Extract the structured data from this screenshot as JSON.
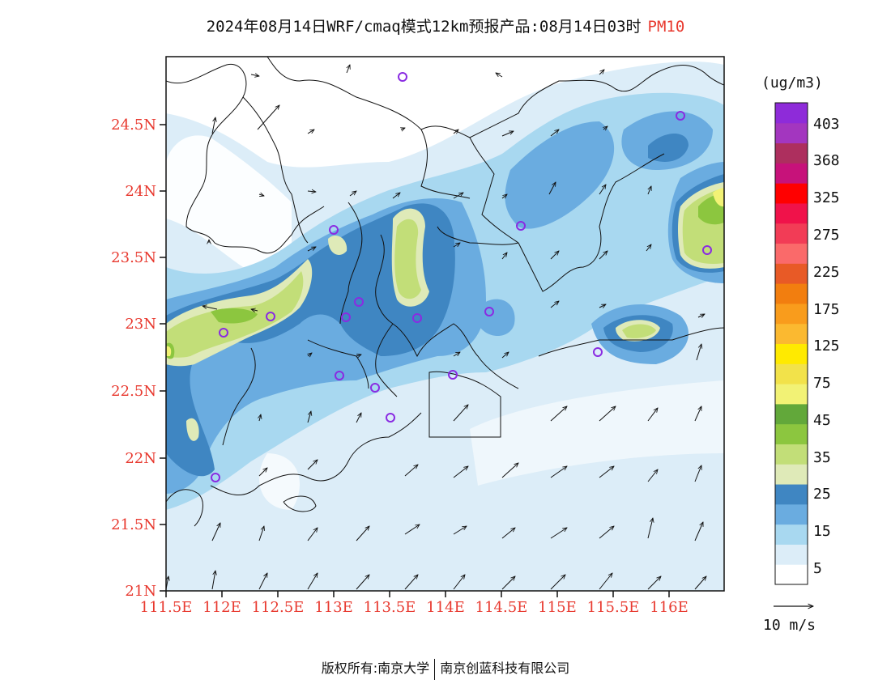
{
  "header": {
    "title": "2024年08月14日WRF/cmaq模式12km预报产品:08月14日03时",
    "pollutant": "PM10"
  },
  "map": {
    "lat_ticks": [
      "24.5N",
      "24N",
      "23.5N",
      "23N",
      "22.5N",
      "22N",
      "21.5N",
      "21N"
    ],
    "lon_ticks": [
      "111.5E",
      "112E",
      "112.5E",
      "113E",
      "113.5E",
      "114E",
      "114.5E",
      "115E",
      "115.5E",
      "116E"
    ],
    "lat_range": [
      21.0,
      25.0
    ],
    "lon_range": [
      111.5,
      116.5
    ],
    "station_icon": "circle-station-icon",
    "colors": {
      "axis_labels": "#e8392f",
      "station_marker": "#8a2be2"
    }
  },
  "legend": {
    "unit": "(ug/m3)",
    "levels": [
      "403",
      "368",
      "325",
      "275",
      "225",
      "175",
      "125",
      "75",
      "45",
      "35",
      "25",
      "15",
      "5"
    ],
    "colors": [
      "#ffffff",
      "#dcedf8",
      "#a8d8f0",
      "#6aace0",
      "#3f86c2",
      "#dfeab8",
      "#c2de78",
      "#8cc63f",
      "#62a83a",
      "#f2f275",
      "#f2e24a",
      "#ffea00",
      "#fbb930",
      "#f99c1c",
      "#f27e0f",
      "#e85a26",
      "#fa6a6a",
      "#f23c56",
      "#f0124a",
      "#ff0000",
      "#c7127a",
      "#ad2f5e",
      "#a336bf",
      "#8e2bd9"
    ]
  },
  "wind_scale": {
    "label": "10 m/s"
  },
  "footer": {
    "left": "版权所有:南京大学",
    "right": "南京创蓝科技有限公司"
  }
}
